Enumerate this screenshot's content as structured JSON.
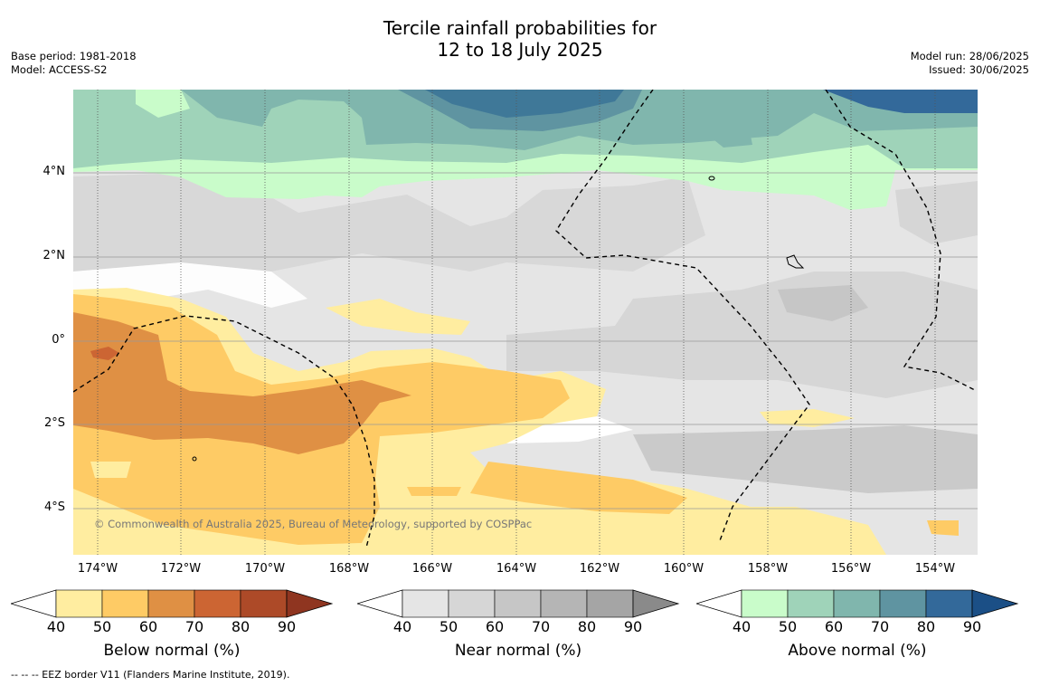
{
  "header": {
    "title_line1": "Tercile rainfall probabilities for",
    "title_line2": "12 to 18 July 2025",
    "base_period": "Base period: 1981-2018",
    "model": "Model: ACCESS-S2",
    "model_run": "Model run: 28/06/2025",
    "issued": "Issued: 30/06/2025"
  },
  "map": {
    "lon_labels": [
      "174°W",
      "172°W",
      "170°W",
      "168°W",
      "166°W",
      "164°W",
      "162°W",
      "160°W",
      "158°W",
      "156°W",
      "154°W"
    ],
    "lat_labels": [
      "4°N",
      "2°N",
      "0°",
      "2°S",
      "4°S"
    ],
    "copyright": "© Commonwealth of Australia 2025, Bureau of Meteorology, supported by COSPPac"
  },
  "colorbars": [
    {
      "label": "Below normal (%)",
      "ticks": [
        "40",
        "50",
        "60",
        "70",
        "80",
        "90"
      ],
      "colors": [
        "#ffeda0",
        "#fecb65",
        "#df9044",
        "#cc6533",
        "#ad4a28",
        "#8f3520"
      ]
    },
    {
      "label": "Near normal (%)",
      "ticks": [
        "40",
        "50",
        "60",
        "70",
        "80",
        "90"
      ],
      "colors": [
        "#e5e5e5",
        "#d6d6d6",
        "#c6c6c6",
        "#b5b5b5",
        "#a5a5a5",
        "#8a8a8a"
      ]
    },
    {
      "label": "Above normal (%)",
      "ticks": [
        "40",
        "50",
        "60",
        "70",
        "80",
        "90"
      ],
      "colors": [
        "#c9fcca",
        "#9fd3b9",
        "#80b6ad",
        "#5f94a1",
        "#33699a",
        "#1b4f86"
      ]
    }
  ],
  "footnote": "--  --  -- EEZ border V11 (Flanders Marine Institute, 2019)."
}
